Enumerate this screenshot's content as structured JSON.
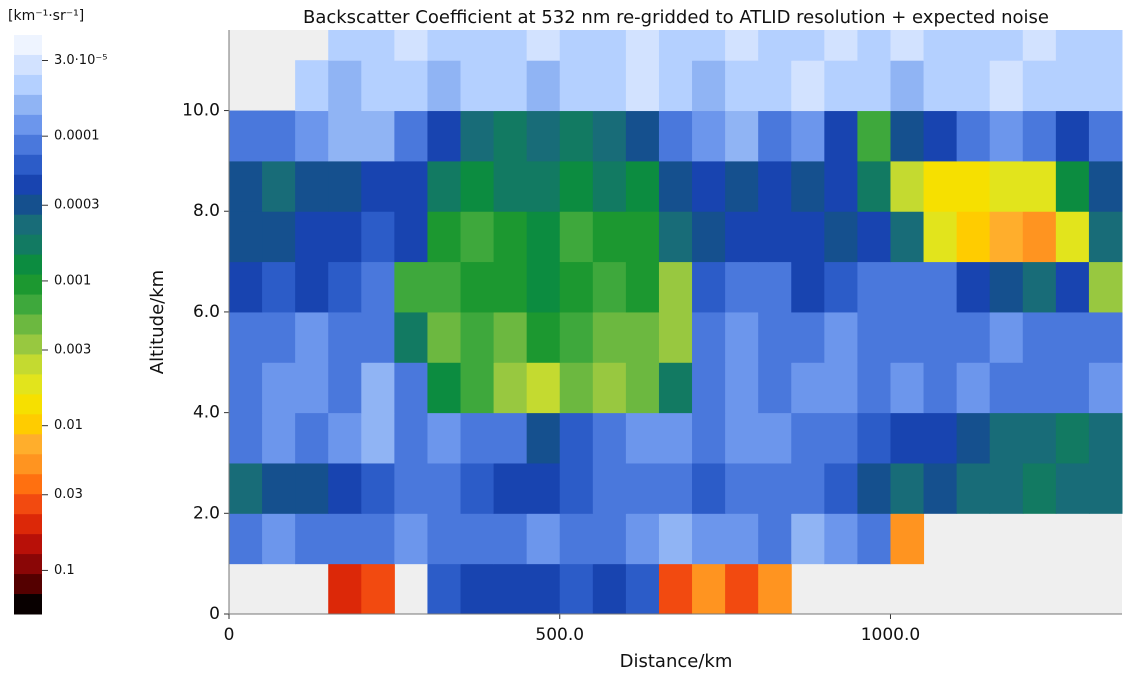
{
  "chart_data": {
    "type": "heatmap",
    "title": "Backscatter Coefficient at 532 nm  re-gridded to ATLID resolution + expected noise",
    "x_label": "Distance/km",
    "y_label": "Altitude/km",
    "colorbar_label": "[km⁻¹·sr⁻¹]",
    "xlim": [
      0,
      1350
    ],
    "xticks": [
      0,
      {
        "value": 500,
        "label": "500.0"
      },
      {
        "value": 1000,
        "label": "1000.0"
      }
    ],
    "ylim": [
      0,
      11.6
    ],
    "yticks": [
      0,
      {
        "value": 2,
        "label": "2.0"
      },
      {
        "value": 4,
        "label": "4.0"
      },
      {
        "value": 6,
        "label": "6.0"
      },
      {
        "value": 8,
        "label": "8.0"
      },
      {
        "value": 10,
        "label": "10.0"
      }
    ],
    "clim": [
      2e-05,
      0.2
    ],
    "log_color_scale": true,
    "cticks": [
      {
        "value": 3e-05,
        "label": "3.0·10⁻⁵"
      },
      0.0001,
      0.0003,
      0.001,
      0.003,
      0.01,
      0.03,
      0.1
    ],
    "colors": [
      "#eef4ff",
      "#d2e2ff",
      "#b4d0ff",
      "#90b4f4",
      "#6c96ec",
      "#4a78dc",
      "#2c5cc8",
      "#1844b0",
      "#15508e",
      "#186c78",
      "#127a62",
      "#0c8c40",
      "#1c9830",
      "#3ea83c",
      "#6cb840",
      "#98c840",
      "#c4da30",
      "#e2e41c",
      "#f6e000",
      "#ffcc00",
      "#ffae2c",
      "#ff9420",
      "#ff7010",
      "#f24a10",
      "#dc2808",
      "#b81008",
      "#8a0606",
      "#540000",
      "#080000"
    ],
    "background": "#efefef",
    "x_bins": [
      0,
      50,
      100,
      150,
      200,
      250,
      300,
      350,
      400,
      450,
      500,
      550,
      600,
      650,
      700,
      750,
      800,
      850,
      900,
      950,
      1000,
      1050,
      1100,
      1150,
      1200,
      1250,
      1300,
      1350
    ],
    "y_bins": [
      0,
      1,
      2,
      3,
      4,
      5,
      6,
      7,
      8,
      9,
      10,
      11,
      11.6
    ],
    "z": [
      [
        null,
        null,
        null,
        0.05,
        0.04,
        null,
        0.00015,
        0.0002,
        0.00025,
        0.0002,
        0.00015,
        0.0002,
        0.00015,
        0.03,
        0.02,
        0.03,
        0.02,
        null,
        null,
        null,
        null,
        null,
        null,
        null,
        null,
        null,
        null
      ],
      [
        0.0001,
        8e-05,
        0.0001,
        0.00012,
        0.0001,
        9e-05,
        0.0001,
        0.00012,
        0.0001,
        9e-05,
        0.00011,
        0.0001,
        8e-05,
        7e-05,
        9e-05,
        8e-05,
        0.0001,
        7e-05,
        9e-05,
        0.0001,
        0.02,
        null,
        null,
        null,
        null,
        null,
        null
      ],
      [
        0.0004,
        0.0003,
        0.0003,
        0.0002,
        0.00015,
        0.0001,
        0.00012,
        0.00015,
        0.0002,
        0.0002,
        0.00015,
        0.00012,
        0.0001,
        0.0001,
        0.00015,
        0.00012,
        0.0001,
        0.00012,
        0.00015,
        0.0003,
        0.0004,
        0.0003,
        0.0004,
        0.0004,
        0.0005,
        0.0004,
        0.0004
      ],
      [
        0.0001,
        8e-05,
        0.0001,
        9e-05,
        7e-05,
        0.0001,
        8e-05,
        0.0001,
        0.00012,
        0.0003,
        0.00015,
        0.0001,
        8e-05,
        9e-05,
        0.0001,
        8e-05,
        9e-05,
        0.0001,
        0.00012,
        0.00015,
        0.0002,
        0.0002,
        0.0003,
        0.0004,
        0.0004,
        0.0005,
        0.0004
      ],
      [
        0.0001,
        8e-05,
        9e-05,
        0.0001,
        7e-05,
        0.0001,
        0.0008,
        0.0015,
        0.003,
        0.004,
        0.002,
        0.003,
        0.002,
        0.0006,
        0.0001,
        8e-05,
        0.0001,
        9e-05,
        8e-05,
        0.0001,
        9e-05,
        0.0001,
        8e-05,
        0.0001,
        0.00012,
        0.0001,
        9e-05
      ],
      [
        0.00012,
        0.0001,
        9e-05,
        0.0001,
        0.0001,
        0.0006,
        0.002,
        0.0015,
        0.002,
        0.0012,
        0.0015,
        0.002,
        0.0018,
        0.0025,
        0.0001,
        9e-05,
        0.0001,
        0.00011,
        9e-05,
        0.0001,
        0.00012,
        0.0001,
        0.0001,
        9e-05,
        0.0001,
        0.0001,
        0.0001
      ],
      [
        0.0002,
        0.00015,
        0.0002,
        0.00015,
        0.0001,
        0.0015,
        0.0015,
        0.001,
        0.0012,
        0.0008,
        0.0012,
        0.0015,
        0.0012,
        0.003,
        0.00015,
        0.0001,
        0.00012,
        0.0002,
        0.00015,
        0.0001,
        0.00012,
        0.0001,
        0.0002,
        0.0003,
        0.0004,
        0.0002,
        0.003
      ],
      [
        0.0003,
        0.0003,
        0.00025,
        0.0002,
        0.00015,
        0.0002,
        0.0012,
        0.0015,
        0.001,
        0.0007,
        0.0015,
        0.001,
        0.0012,
        0.0004,
        0.0003,
        0.0002,
        0.00025,
        0.0002,
        0.0003,
        0.0002,
        0.0004,
        0.006,
        0.01,
        0.015,
        0.02,
        0.006,
        0.0004
      ],
      [
        0.0003,
        0.0004,
        0.0003,
        0.0003,
        0.0002,
        0.0002,
        0.0006,
        0.0009,
        0.0006,
        0.0005,
        0.0009,
        0.0006,
        0.0007,
        0.0003,
        0.0002,
        0.0003,
        0.0002,
        0.0003,
        0.0002,
        0.0006,
        0.004,
        0.007,
        0.008,
        0.006,
        0.005,
        0.0008,
        0.0003
      ],
      [
        0.0001,
        0.0001,
        8e-05,
        7e-05,
        6e-05,
        0.0001,
        0.0002,
        0.0004,
        0.0005,
        0.0004,
        0.0005,
        0.0004,
        0.0003,
        0.0001,
        8e-05,
        7e-05,
        0.0001,
        9e-05,
        0.0002,
        0.0015,
        0.0003,
        0.0002,
        0.0001,
        9e-05,
        0.0001,
        0.0002,
        0.0001
      ],
      [
        null,
        null,
        5e-05,
        6e-05,
        4e-05,
        5e-05,
        6e-05,
        4e-05,
        5e-05,
        6e-05,
        4e-05,
        5e-05,
        3e-05,
        5e-05,
        6e-05,
        4e-05,
        5e-05,
        3e-05,
        4e-05,
        5e-05,
        6e-05,
        4e-05,
        5e-05,
        3e-05,
        4e-05,
        5e-05,
        4e-05
      ],
      [
        null,
        null,
        null,
        4e-05,
        5e-05,
        3e-05,
        4e-05,
        5e-05,
        4e-05,
        3e-05,
        5e-05,
        4e-05,
        3e-05,
        4e-05,
        5e-05,
        3e-05,
        4e-05,
        5e-05,
        3e-05,
        4e-05,
        3e-05,
        4e-05,
        5e-05,
        4e-05,
        3e-05,
        4e-05,
        5e-05
      ]
    ]
  }
}
